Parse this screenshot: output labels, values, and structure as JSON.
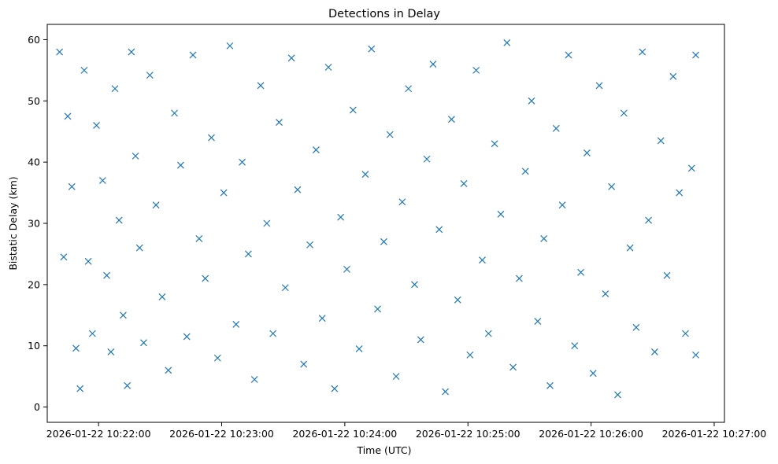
{
  "chart_data": {
    "type": "scatter",
    "title": "Detections in Delay",
    "xlabel": "Time (UTC)",
    "ylabel": "Bistatic Delay (km)",
    "x_tick_labels": [
      "2026-01-22 10:22:00",
      "2026-01-22 10:23:00",
      "2026-01-22 10:24:00",
      "2026-01-22 10:25:00",
      "2026-01-22 10:26:00",
      "2026-01-22 10:27:00"
    ],
    "y_ticks": [
      0,
      10,
      20,
      30,
      40,
      50,
      60
    ],
    "xlim": [
      "2026-01-22 10:21:35",
      "2026-01-22 10:27:05"
    ],
    "ylim": [
      -2.5,
      62.5
    ],
    "grid": false,
    "marker": "x",
    "series": [
      {
        "color": "#1f77b4",
        "points": [
          [
            "2026-01-22 10:21:41",
            58.0
          ],
          [
            "2026-01-22 10:21:43",
            24.5
          ],
          [
            "2026-01-22 10:21:45",
            47.5
          ],
          [
            "2026-01-22 10:21:47",
            36.0
          ],
          [
            "2026-01-22 10:21:49",
            9.6
          ],
          [
            "2026-01-22 10:21:51",
            3.0
          ],
          [
            "2026-01-22 10:21:53",
            55.0
          ],
          [
            "2026-01-22 10:21:55",
            23.8
          ],
          [
            "2026-01-22 10:21:57",
            12.0
          ],
          [
            "2026-01-22 10:21:59",
            46.0
          ],
          [
            "2026-01-22 10:22:02",
            37.0
          ],
          [
            "2026-01-22 10:22:04",
            21.5
          ],
          [
            "2026-01-22 10:22:06",
            9.0
          ],
          [
            "2026-01-22 10:22:08",
            52.0
          ],
          [
            "2026-01-22 10:22:10",
            30.5
          ],
          [
            "2026-01-22 10:22:12",
            15.0
          ],
          [
            "2026-01-22 10:22:14",
            3.5
          ],
          [
            "2026-01-22 10:22:16",
            58.0
          ],
          [
            "2026-01-22 10:22:18",
            41.0
          ],
          [
            "2026-01-22 10:22:20",
            26.0
          ],
          [
            "2026-01-22 10:22:22",
            10.5
          ],
          [
            "2026-01-22 10:22:25",
            54.2
          ],
          [
            "2026-01-22 10:22:28",
            33.0
          ],
          [
            "2026-01-22 10:22:31",
            18.0
          ],
          [
            "2026-01-22 10:22:34",
            6.0
          ],
          [
            "2026-01-22 10:22:37",
            48.0
          ],
          [
            "2026-01-22 10:22:40",
            39.5
          ],
          [
            "2026-01-22 10:22:43",
            11.5
          ],
          [
            "2026-01-22 10:22:46",
            57.5
          ],
          [
            "2026-01-22 10:22:49",
            27.5
          ],
          [
            "2026-01-22 10:22:52",
            21.0
          ],
          [
            "2026-01-22 10:22:55",
            44.0
          ],
          [
            "2026-01-22 10:22:58",
            8.0
          ],
          [
            "2026-01-22 10:23:01",
            35.0
          ],
          [
            "2026-01-22 10:23:04",
            59.0
          ],
          [
            "2026-01-22 10:23:07",
            13.5
          ],
          [
            "2026-01-22 10:23:10",
            40.0
          ],
          [
            "2026-01-22 10:23:13",
            25.0
          ],
          [
            "2026-01-22 10:23:16",
            4.5
          ],
          [
            "2026-01-22 10:23:19",
            52.5
          ],
          [
            "2026-01-22 10:23:22",
            30.0
          ],
          [
            "2026-01-22 10:23:25",
            12.0
          ],
          [
            "2026-01-22 10:23:28",
            46.5
          ],
          [
            "2026-01-22 10:23:31",
            19.5
          ],
          [
            "2026-01-22 10:23:34",
            57.0
          ],
          [
            "2026-01-22 10:23:37",
            35.5
          ],
          [
            "2026-01-22 10:23:40",
            7.0
          ],
          [
            "2026-01-22 10:23:43",
            26.5
          ],
          [
            "2026-01-22 10:23:46",
            42.0
          ],
          [
            "2026-01-22 10:23:49",
            14.5
          ],
          [
            "2026-01-22 10:23:52",
            55.5
          ],
          [
            "2026-01-22 10:23:55",
            3.0
          ],
          [
            "2026-01-22 10:23:58",
            31.0
          ],
          [
            "2026-01-22 10:24:01",
            22.5
          ],
          [
            "2026-01-22 10:24:04",
            48.5
          ],
          [
            "2026-01-22 10:24:07",
            9.5
          ],
          [
            "2026-01-22 10:24:10",
            38.0
          ],
          [
            "2026-01-22 10:24:13",
            58.5
          ],
          [
            "2026-01-22 10:24:16",
            16.0
          ],
          [
            "2026-01-22 10:24:19",
            27.0
          ],
          [
            "2026-01-22 10:24:22",
            44.5
          ],
          [
            "2026-01-22 10:24:25",
            5.0
          ],
          [
            "2026-01-22 10:24:28",
            33.5
          ],
          [
            "2026-01-22 10:24:31",
            52.0
          ],
          [
            "2026-01-22 10:24:34",
            20.0
          ],
          [
            "2026-01-22 10:24:37",
            11.0
          ],
          [
            "2026-01-22 10:24:40",
            40.5
          ],
          [
            "2026-01-22 10:24:43",
            56.0
          ],
          [
            "2026-01-22 10:24:46",
            29.0
          ],
          [
            "2026-01-22 10:24:49",
            2.5
          ],
          [
            "2026-01-22 10:24:52",
            47.0
          ],
          [
            "2026-01-22 10:24:55",
            17.5
          ],
          [
            "2026-01-22 10:24:58",
            36.5
          ],
          [
            "2026-01-22 10:25:01",
            8.5
          ],
          [
            "2026-01-22 10:25:04",
            55.0
          ],
          [
            "2026-01-22 10:25:07",
            24.0
          ],
          [
            "2026-01-22 10:25:10",
            12.0
          ],
          [
            "2026-01-22 10:25:13",
            43.0
          ],
          [
            "2026-01-22 10:25:16",
            31.5
          ],
          [
            "2026-01-22 10:25:19",
            59.5
          ],
          [
            "2026-01-22 10:25:22",
            6.5
          ],
          [
            "2026-01-22 10:25:25",
            21.0
          ],
          [
            "2026-01-22 10:25:28",
            38.5
          ],
          [
            "2026-01-22 10:25:31",
            50.0
          ],
          [
            "2026-01-22 10:25:34",
            14.0
          ],
          [
            "2026-01-22 10:25:37",
            27.5
          ],
          [
            "2026-01-22 10:25:40",
            3.5
          ],
          [
            "2026-01-22 10:25:43",
            45.5
          ],
          [
            "2026-01-22 10:25:46",
            33.0
          ],
          [
            "2026-01-22 10:25:49",
            57.5
          ],
          [
            "2026-01-22 10:25:52",
            10.0
          ],
          [
            "2026-01-22 10:25:55",
            22.0
          ],
          [
            "2026-01-22 10:25:58",
            41.5
          ],
          [
            "2026-01-22 10:26:01",
            5.5
          ],
          [
            "2026-01-22 10:26:04",
            52.5
          ],
          [
            "2026-01-22 10:26:07",
            18.5
          ],
          [
            "2026-01-22 10:26:10",
            36.0
          ],
          [
            "2026-01-22 10:26:13",
            2.0
          ],
          [
            "2026-01-22 10:26:16",
            48.0
          ],
          [
            "2026-01-22 10:26:19",
            26.0
          ],
          [
            "2026-01-22 10:26:22",
            13.0
          ],
          [
            "2026-01-22 10:26:25",
            58.0
          ],
          [
            "2026-01-22 10:26:28",
            30.5
          ],
          [
            "2026-01-22 10:26:31",
            9.0
          ],
          [
            "2026-01-22 10:26:34",
            43.5
          ],
          [
            "2026-01-22 10:26:37",
            21.5
          ],
          [
            "2026-01-22 10:26:40",
            54.0
          ],
          [
            "2026-01-22 10:26:43",
            35.0
          ],
          [
            "2026-01-22 10:26:46",
            12.0
          ],
          [
            "2026-01-22 10:26:49",
            39.0
          ],
          [
            "2026-01-22 10:26:51",
            57.5
          ],
          [
            "2026-01-22 10:26:51",
            8.5
          ]
        ]
      }
    ]
  }
}
